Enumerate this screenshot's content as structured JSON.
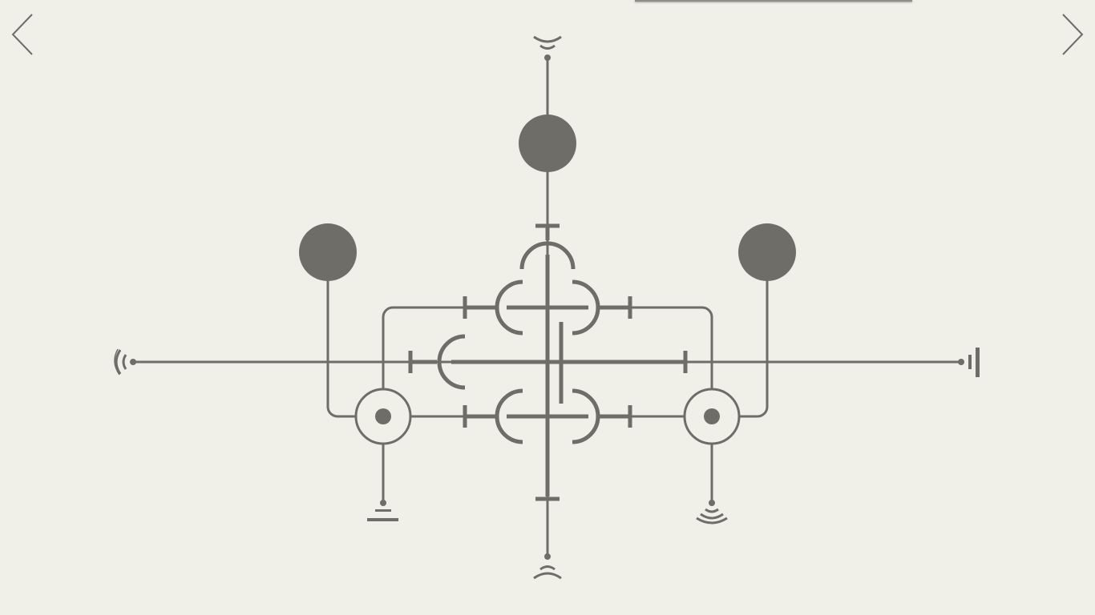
{
  "game": {
    "type": "signal-circuit-puzzle",
    "colors": {
      "background": "#f0efe8",
      "ink": "#6f6d68",
      "node_fill": "#6f6d68"
    }
  },
  "navigation": {
    "previous_icon": "chevron-left-icon",
    "next_icon": "chevron-right-icon"
  },
  "nodes": [
    {
      "id": "node-top",
      "state": "filled"
    },
    {
      "id": "node-left",
      "state": "filled"
    },
    {
      "id": "node-right",
      "state": "filled"
    }
  ],
  "switches": [
    {
      "id": "switch-left",
      "state": "active"
    },
    {
      "id": "switch-right",
      "state": "active"
    }
  ],
  "terminals": [
    {
      "id": "terminal-top",
      "icon": "signal-receiver-icon"
    },
    {
      "id": "terminal-bottom",
      "icon": "signal-emitter-icon"
    },
    {
      "id": "terminal-left",
      "icon": "broadcast-icon"
    },
    {
      "id": "terminal-right",
      "icon": "battery-icon"
    },
    {
      "id": "terminal-bottom-left",
      "icon": "ground-icon"
    },
    {
      "id": "terminal-bottom-right",
      "icon": "antenna-icon"
    }
  ]
}
